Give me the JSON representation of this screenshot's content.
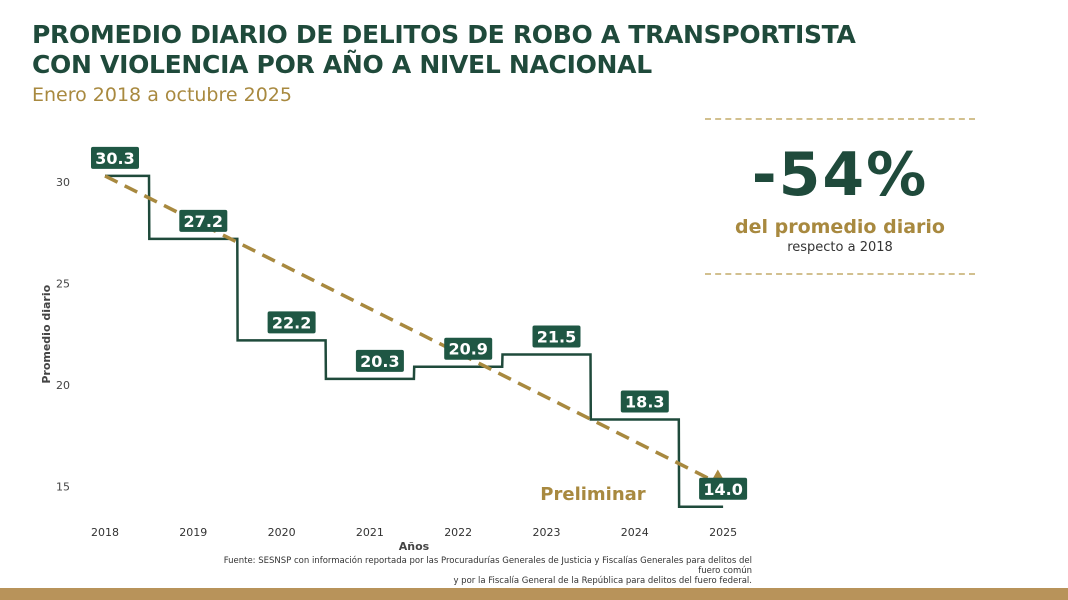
{
  "header": {
    "title_line1": "PROMEDIO DIARIO DE DELITOS DE ROBO A TRANSPORTISTA",
    "title_line2": "CON VIOLENCIA POR AÑO A NIVEL NACIONAL",
    "subtitle": "Enero 2018 a octubre 2025"
  },
  "kpi": {
    "value": "-54%",
    "label": "del promedio diario",
    "sublabel": "respecto a 2018"
  },
  "source": {
    "line1": "Fuente: SESNSP con información reportada por las Procuradurías Generales de Justicia y Fiscalías Generales para delitos del fuero común",
    "line2": "y por la Fiscalía General de la República para delitos del fuero federal."
  },
  "chart_data": {
    "type": "line",
    "step": true,
    "title": "PROMEDIO DIARIO DE DELITOS DE ROBO A TRANSPORTISTA CON VIOLENCIA POR AÑO A NIVEL NACIONAL",
    "xlabel": "Años",
    "ylabel": "Promedio diario",
    "categories": [
      "2018",
      "2019",
      "2020",
      "2021",
      "2022",
      "2023",
      "2024",
      "2025"
    ],
    "values": [
      30.3,
      27.2,
      22.2,
      20.3,
      20.9,
      21.5,
      18.3,
      14.0
    ],
    "data_labels": [
      "30.3",
      "27.2",
      "22.2",
      "20.3",
      "20.9",
      "21.5",
      "18.3",
      "14.0"
    ],
    "yticks": [
      15,
      20,
      25,
      30
    ],
    "ylim": [
      13,
      31.5
    ],
    "trend": {
      "style": "dashed-arrow",
      "from": 30.3,
      "to": 14.0
    },
    "annotation": "Preliminar",
    "grid": false,
    "colors": {
      "line": "#1f4a3b",
      "label_bg": "#1f5744",
      "trend": "#a8893f"
    }
  }
}
